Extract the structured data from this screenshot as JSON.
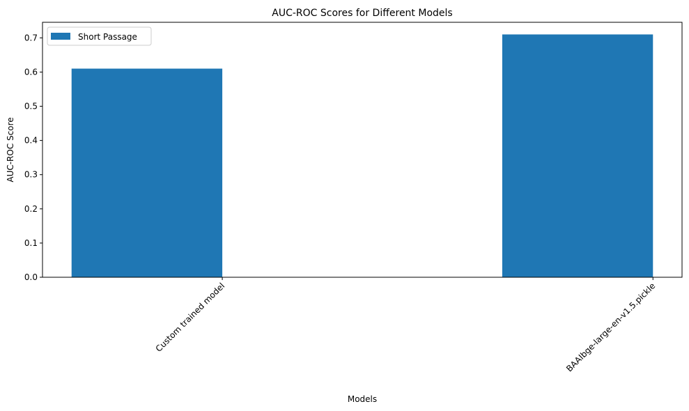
{
  "chart_data": {
    "type": "bar",
    "title": "AUC-ROC Scores for Different Models",
    "xlabel": "Models",
    "ylabel": "AUC-ROC Score",
    "categories": [
      "Custom trained model",
      "BAAIbge-large-en-v1.5.pickle"
    ],
    "series": [
      {
        "name": "Short Passage",
        "values": [
          0.61,
          0.71
        ],
        "color": "#1f77b4"
      }
    ],
    "yticks": [
      "0.0",
      "0.1",
      "0.2",
      "0.3",
      "0.4",
      "0.5",
      "0.6",
      "0.7"
    ],
    "ylim": [
      0,
      0.7455
    ],
    "grid": false,
    "legend_position": "top-left",
    "x_tick_rotation_deg": 45
  }
}
